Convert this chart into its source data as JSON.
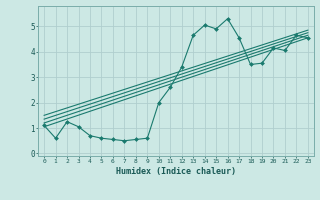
{
  "xlabel": "Humidex (Indice chaleur)",
  "bg_color": "#cce8e4",
  "grid_color": "#b0cece",
  "line_color": "#1a7a6e",
  "x_data": [
    0,
    1,
    2,
    3,
    4,
    5,
    6,
    7,
    8,
    9,
    10,
    11,
    12,
    13,
    14,
    15,
    16,
    17,
    18,
    19,
    20,
    21,
    22,
    23
  ],
  "y_curve": [
    1.1,
    0.6,
    1.25,
    1.05,
    0.7,
    0.6,
    0.55,
    0.5,
    0.55,
    0.6,
    2.0,
    2.6,
    3.4,
    4.65,
    5.05,
    4.9,
    5.3,
    4.55,
    3.5,
    3.55,
    4.15,
    4.05,
    4.65,
    4.55
  ],
  "ylim": [
    -0.1,
    5.8
  ],
  "xlim": [
    -0.5,
    23.5
  ],
  "yticks": [
    0,
    1,
    2,
    3,
    4,
    5
  ],
  "xticks": [
    0,
    1,
    2,
    3,
    4,
    5,
    6,
    7,
    8,
    9,
    10,
    11,
    12,
    13,
    14,
    15,
    16,
    17,
    18,
    19,
    20,
    21,
    22,
    23
  ],
  "regression_lines": [
    {
      "x0": 0,
      "y0": 1.05,
      "x1": 23,
      "y1": 4.55
    },
    {
      "x0": 0,
      "y0": 1.2,
      "x1": 23,
      "y1": 4.65
    },
    {
      "x0": 0,
      "y0": 1.35,
      "x1": 23,
      "y1": 4.75
    },
    {
      "x0": 0,
      "y0": 1.5,
      "x1": 23,
      "y1": 4.85
    }
  ]
}
